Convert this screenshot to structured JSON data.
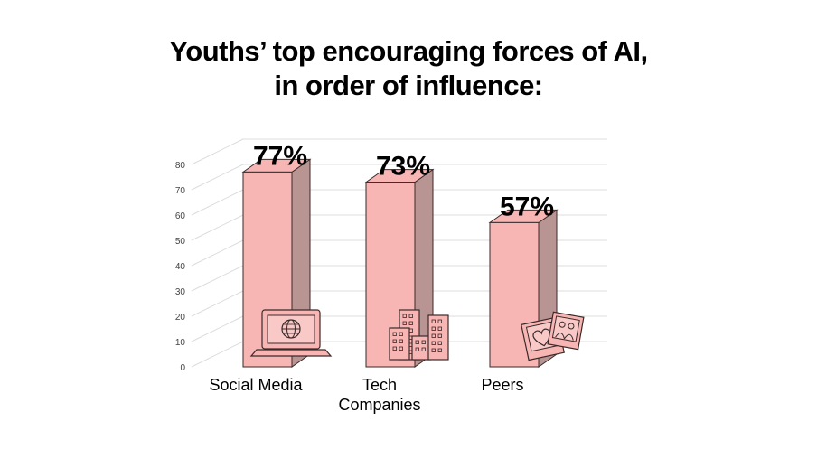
{
  "chart_data": {
    "type": "bar",
    "title": [
      "Youths’ top encouraging forces of AI,",
      "in order of influence:"
    ],
    "categories": [
      "Social Media",
      "Tech Companies",
      "Peers"
    ],
    "category_label_lines": [
      [
        "Social Media"
      ],
      [
        "Tech",
        "Companies"
      ],
      [
        "Peers"
      ]
    ],
    "values": [
      77,
      73,
      57
    ],
    "value_labels": [
      "77%",
      "73%",
      "57%"
    ],
    "y_ticks": [
      0,
      10,
      20,
      30,
      40,
      50,
      60,
      70,
      80
    ],
    "ylim": [
      0,
      90
    ],
    "grid": true,
    "style": "3d",
    "icons": [
      "laptop-globe-icon",
      "city-buildings-icon",
      "photos-icon"
    ],
    "colors": {
      "bar_front": "#f7b5b4",
      "bar_side": "#b89593",
      "outline": "#3a2a2a",
      "grid": "#dcdcdc"
    }
  }
}
